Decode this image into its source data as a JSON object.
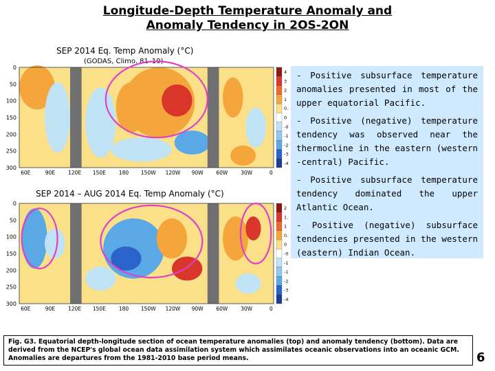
{
  "header": {
    "title_line1": "Longitude-Depth Temperature Anomaly and",
    "title_line2": "Anomaly Tendency in 2OS-2ON"
  },
  "chart_data": [
    {
      "type": "heatmap",
      "title": "SEP 2014 Eq. Temp Anomaly (°C)",
      "subtitle": "(GODAS, Climo. 81–10)",
      "x_ticks": [
        "60E",
        "90E",
        "120E",
        "150E",
        "180",
        "150W",
        "120W",
        "90W",
        "60W",
        "30W",
        "0"
      ],
      "y_ticks": [
        "0",
        "50",
        "100",
        "150",
        "200",
        "250",
        "300"
      ],
      "ylim": [
        300,
        0
      ],
      "colorbar_ticks": [
        "4",
        "3",
        "2",
        "1",
        "0.5",
        "0",
        "-0.5",
        "-1",
        "-2",
        "-3",
        "-4"
      ]
    },
    {
      "type": "heatmap",
      "title": "SEP 2014 – AUG 2014 Eq. Temp Anomaly (°C)",
      "x_ticks": [
        "60E",
        "90E",
        "120E",
        "150E",
        "180",
        "150W",
        "120W",
        "90W",
        "60W",
        "30W",
        "0"
      ],
      "y_ticks": [
        "0",
        "50",
        "100",
        "150",
        "200",
        "250",
        "300"
      ],
      "ylim": [
        300,
        0
      ],
      "colorbar_ticks": [
        "2",
        "1.5",
        "1",
        "0.5",
        "0",
        "-0.5",
        "-1",
        "-1.5",
        "-2",
        "-3",
        "-4"
      ]
    }
  ],
  "notes": [
    "- Positive subsurface temperature anomalies presented in most of the upper equatorial Pacific.",
    "- Positive (negative) temperature tendency was observed near the thermocline in the eastern (western -central) Pacific.",
    "- Positive subsurface temperature tendency dominated the upper Atlantic Ocean.",
    "- Positive (negative) subsurface tendencies presented in the western (eastern) Indian Ocean."
  ],
  "caption": "Fig. G3. Equatorial depth-longitude section of ocean temperature anomalies (top) and anomaly tendency (bottom). Data are derived from the NCEP's global ocean data assimilation system which assimilates oceanic observations into an oceanic GCM. Anomalies are departures from the 1981-2010 base period means.",
  "page_number": "6",
  "colors": {
    "warm_strong": "#d9362b",
    "warm": "#f4a63c",
    "warm_light": "#fbe08a",
    "cool_light": "#bfe3f5",
    "cool": "#5aa9e6",
    "cool_strong": "#2a63c9",
    "land": "#707070",
    "circle": "#e040c8",
    "notes_bg": "#cfe9ff"
  }
}
